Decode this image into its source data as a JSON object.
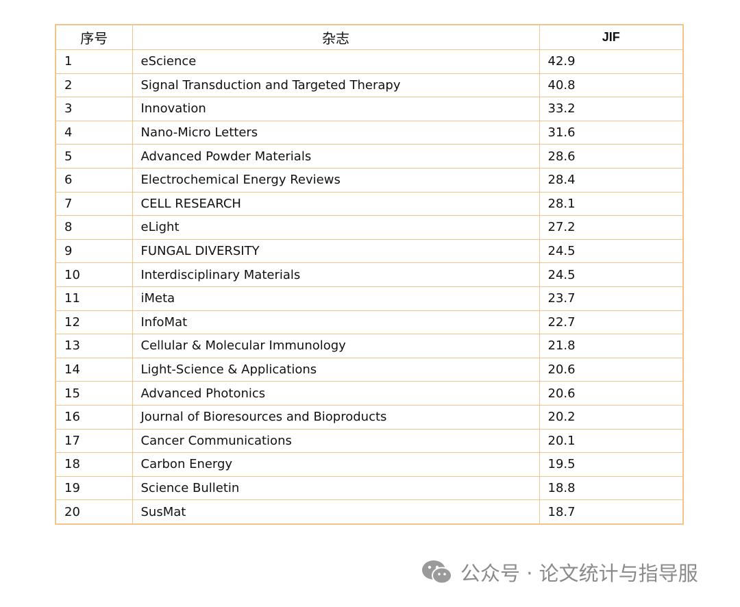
{
  "table": {
    "header": [
      "序号",
      "杂志",
      "JIF"
    ],
    "rows": [
      [
        1,
        "eScience",
        42.9
      ],
      [
        2,
        "Signal Transduction and Targeted Therapy",
        40.8
      ],
      [
        3,
        "Innovation",
        33.2
      ],
      [
        4,
        "Nano-Micro Letters",
        31.6
      ],
      [
        5,
        "Advanced Powder Materials",
        28.6
      ],
      [
        6,
        "Electrochemical Energy Reviews",
        28.4
      ],
      [
        7,
        "CELL RESEARCH",
        28.1
      ],
      [
        8,
        "eLight",
        27.2
      ],
      [
        9,
        "FUNGAL DIVERSITY",
        24.5
      ],
      [
        10,
        "Interdisciplinary Materials",
        24.5
      ],
      [
        11,
        "iMeta",
        23.7
      ],
      [
        12,
        "InfoMat",
        22.7
      ],
      [
        13,
        "Cellular & Molecular Immunology",
        21.8
      ],
      [
        14,
        "Light-Science & Applications",
        20.6
      ],
      [
        15,
        "Advanced Photonics",
        20.6
      ],
      [
        16,
        "Journal of Bioresources and Bioproducts",
        20.2
      ],
      [
        17,
        "Cancer Communications",
        20.1
      ],
      [
        18,
        "Carbon Energy",
        19.5
      ],
      [
        19,
        "Science Bulletin",
        18.8
      ],
      [
        20,
        "SusMat",
        18.7
      ]
    ]
  },
  "watermark": {
    "text": "公众号 · 论文统计与指导服"
  }
}
